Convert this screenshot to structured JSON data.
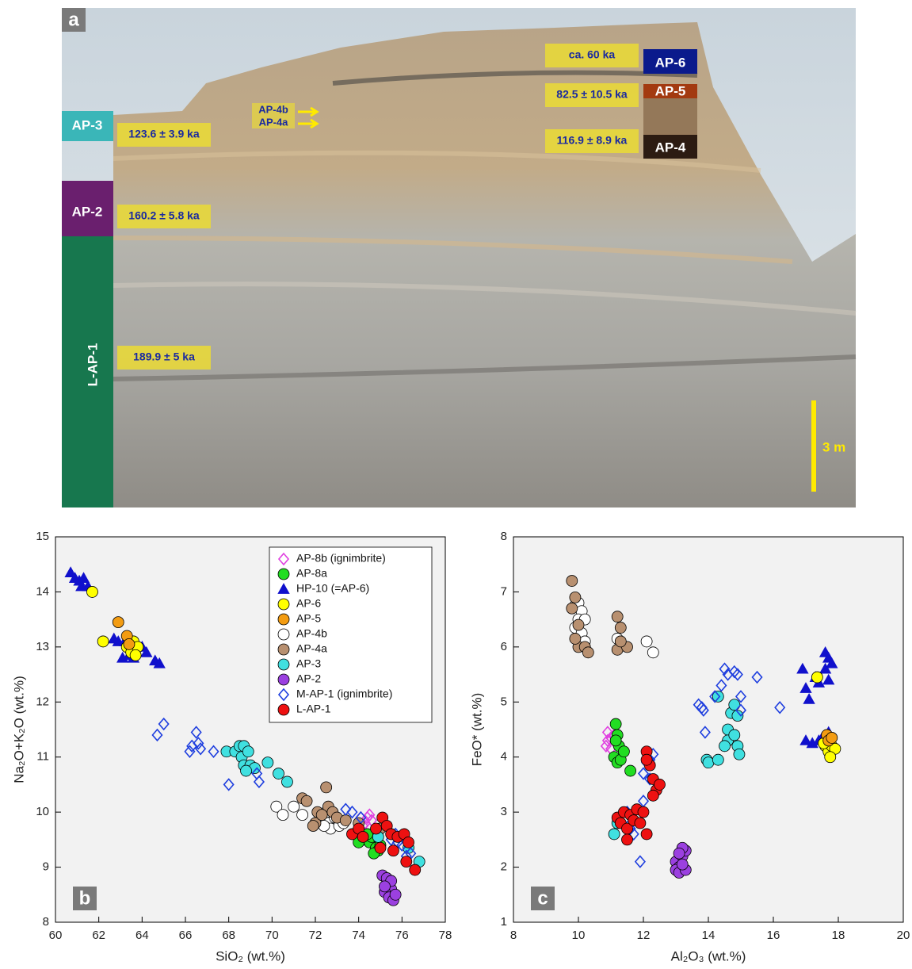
{
  "photo": {
    "label": "a",
    "unit_labels": [
      "AP-3",
      "AP-2",
      "L-AP-1",
      "AP-6",
      "AP-5",
      "AP-4"
    ],
    "ages": [
      "123.6 ± 3.9 ka",
      "160.2 ± 5.8 ka",
      "189.9 ± 5 ka",
      "ca. 60 ka",
      "82.5 ± 10.5 ka",
      "116.9 ± 8.9 ka"
    ],
    "arrows": [
      "AP-4b",
      "AP-4a"
    ],
    "scale_bar": "3 m"
  },
  "chart_data": [
    {
      "type": "scatter",
      "label": "b",
      "x_label": "SiO₂ (wt.%)",
      "y_label": "Na₂O+K₂O (wt.%)",
      "xlim": [
        60,
        78
      ],
      "xticks": [
        60,
        62,
        64,
        66,
        68,
        70,
        72,
        74,
        76,
        78
      ],
      "ylim": [
        8,
        15
      ],
      "yticks": [
        8,
        9,
        10,
        11,
        12,
        13,
        14,
        15
      ],
      "legend": "upper right",
      "series": [
        {
          "name": "AP-8b (ignimbrite)",
          "color": "#e040e0",
          "marker": "diamond-open",
          "x": [
            74.1,
            74.3,
            74.5,
            74.6,
            74.2,
            74.4
          ],
          "values": [
            9.9,
            9.8,
            9.95,
            9.85,
            9.75,
            9.9
          ]
        },
        {
          "name": "AP-8a",
          "color": "#22dd22",
          "marker": "circle",
          "x": [
            74.3,
            74.5,
            74.6,
            74.8,
            74.9,
            74.7,
            75.0,
            74.4,
            74.0
          ],
          "values": [
            9.5,
            9.45,
            9.55,
            9.35,
            9.3,
            9.25,
            9.4,
            9.6,
            9.45
          ]
        },
        {
          "name": "HP-10 (=AP-6)",
          "color": "#1010cc",
          "marker": "triangle",
          "x": [
            60.7,
            60.9,
            61.1,
            61.3,
            61.2,
            61.5,
            62.7,
            62.9,
            63.2,
            63.5,
            63.4,
            63.6,
            63.1,
            64.0,
            64.2,
            64.6,
            64.8,
            63.7
          ],
          "values": [
            14.35,
            14.25,
            14.2,
            14.25,
            14.1,
            14.1,
            13.15,
            13.1,
            13.1,
            13.0,
            12.85,
            12.8,
            12.8,
            13.0,
            12.9,
            12.75,
            12.7,
            13.05
          ]
        },
        {
          "name": "AP-6",
          "color": "#ffff00",
          "marker": "circle",
          "x": [
            61.7,
            62.2,
            63.3,
            63.5,
            63.6,
            63.8,
            63.7
          ],
          "values": [
            14.0,
            13.1,
            13.0,
            12.9,
            13.1,
            13.0,
            12.85
          ]
        },
        {
          "name": "AP-5",
          "color": "#f39c12",
          "marker": "circle",
          "x": [
            62.9,
            63.3,
            63.4
          ],
          "values": [
            13.45,
            13.2,
            13.05
          ]
        },
        {
          "name": "AP-4b",
          "color": "#ffffff",
          "marker": "circle",
          "x": [
            70.2,
            70.5,
            71.0,
            71.4,
            72.3,
            72.5,
            72.6,
            72.7,
            72.9,
            73.1,
            73.3,
            72.4
          ],
          "values": [
            10.1,
            9.95,
            10.1,
            9.95,
            9.9,
            10.0,
            9.8,
            9.7,
            9.9,
            9.75,
            9.8,
            9.75
          ]
        },
        {
          "name": "AP-4a",
          "color": "#b89070",
          "marker": "circle",
          "x": [
            71.4,
            71.6,
            72.1,
            72.5,
            72.6,
            72.0,
            71.9,
            72.8,
            73.0,
            73.4,
            74.0,
            75.0,
            72.3
          ],
          "values": [
            10.25,
            10.2,
            10.0,
            10.45,
            10.1,
            9.8,
            9.75,
            10.0,
            9.9,
            9.85,
            9.8,
            9.7,
            9.95
          ]
        },
        {
          "name": "AP-3",
          "color": "#40e0e0",
          "marker": "circle",
          "x": [
            67.9,
            68.3,
            68.5,
            68.7,
            68.6,
            68.9,
            68.7,
            69.0,
            69.2,
            69.8,
            70.3,
            70.7,
            68.8,
            76.3,
            76.8,
            74.9
          ],
          "values": [
            11.1,
            11.1,
            11.2,
            11.2,
            11.0,
            11.1,
            10.85,
            10.85,
            10.8,
            10.9,
            10.7,
            10.55,
            10.75,
            9.35,
            9.1,
            9.55
          ]
        },
        {
          "name": "AP-2",
          "color": "#9b40e0",
          "marker": "circle",
          "x": [
            75.1,
            75.3,
            75.5,
            75.2,
            75.4,
            75.6,
            75.7,
            75.3,
            75.5,
            75.2
          ],
          "values": [
            8.85,
            8.7,
            8.6,
            8.55,
            8.45,
            8.4,
            8.5,
            8.8,
            8.75,
            8.65
          ]
        },
        {
          "name": "M-AP-1 (ignimbrite)",
          "color": "#1f3fdf",
          "marker": "diamond-open",
          "x": [
            64.7,
            65.0,
            66.2,
            66.3,
            66.5,
            66.6,
            66.7,
            67.3,
            68.0,
            69.3,
            69.4,
            73.4,
            73.7,
            74.1,
            75.5,
            75.8,
            76.0,
            76.2,
            76.4,
            75.7
          ],
          "values": [
            11.4,
            11.6,
            11.1,
            11.2,
            11.45,
            11.25,
            11.15,
            11.1,
            10.5,
            10.7,
            10.55,
            10.05,
            10.0,
            9.9,
            9.5,
            9.45,
            9.4,
            9.2,
            9.25,
            9.6
          ]
        },
        {
          "name": "L-AP-1",
          "color": "#ee1111",
          "marker": "circle",
          "x": [
            73.7,
            74.0,
            74.2,
            74.8,
            75.1,
            75.3,
            75.5,
            75.8,
            76.1,
            76.3,
            76.2,
            76.6,
            75.0,
            75.6
          ],
          "values": [
            9.6,
            9.7,
            9.55,
            9.7,
            9.9,
            9.75,
            9.6,
            9.55,
            9.6,
            9.45,
            9.1,
            8.95,
            9.35,
            9.3
          ]
        }
      ]
    },
    {
      "type": "scatter",
      "label": "c",
      "x_label": "Al₂O₃ (wt.%)",
      "y_label": "FeO* (wt.%)",
      "xlim": [
        8,
        20
      ],
      "xticks": [
        8,
        10,
        12,
        14,
        16,
        18,
        20
      ],
      "ylim": [
        1,
        8
      ],
      "yticks": [
        1,
        2,
        3,
        4,
        5,
        6,
        7,
        8
      ],
      "series": [
        {
          "color": "#e040e0",
          "marker": "diamond-open",
          "x": [
            10.9,
            11.0,
            10.85,
            11.0,
            10.9,
            11.1
          ],
          "values": [
            4.45,
            4.35,
            4.2,
            4.15,
            4.3,
            4.4
          ]
        },
        {
          "color": "#22dd22",
          "marker": "circle",
          "x": [
            11.15,
            11.2,
            11.25,
            11.1,
            11.2,
            11.3,
            11.4,
            11.6,
            11.15
          ],
          "values": [
            4.6,
            4.4,
            4.2,
            4.0,
            3.9,
            3.95,
            4.1,
            3.75,
            4.3
          ]
        },
        {
          "color": "#1010cc",
          "marker": "triangle",
          "x": [
            16.9,
            17.0,
            17.1,
            17.3,
            17.6,
            17.7,
            17.6,
            17.8,
            17.7,
            17.4,
            17.0,
            17.2,
            17.4,
            17.7,
            17.5
          ],
          "values": [
            5.6,
            5.25,
            5.05,
            5.45,
            5.9,
            5.8,
            5.6,
            5.7,
            5.4,
            5.35,
            4.3,
            4.25,
            4.3,
            4.45,
            4.35
          ]
        },
        {
          "color": "#ffff00",
          "marker": "circle",
          "x": [
            17.35,
            17.6,
            17.7,
            17.8,
            17.9,
            17.75,
            17.55
          ],
          "values": [
            5.45,
            4.2,
            4.1,
            4.2,
            4.15,
            4.0,
            4.25
          ]
        },
        {
          "color": "#f39c12",
          "marker": "circle",
          "x": [
            17.65,
            17.7,
            17.8
          ],
          "values": [
            4.4,
            4.3,
            4.35
          ]
        },
        {
          "color": "#ffffff",
          "marker": "circle",
          "x": [
            9.9,
            10.0,
            10.1,
            10.0,
            10.2,
            9.9,
            10.1,
            10.2,
            11.2,
            12.1,
            12.3
          ],
          "values": [
            6.75,
            6.8,
            6.65,
            6.5,
            6.5,
            6.35,
            6.25,
            6.1,
            6.15,
            6.1,
            5.9
          ]
        },
        {
          "color": "#b89070",
          "marker": "circle",
          "x": [
            9.8,
            9.9,
            9.8,
            10.0,
            10.0,
            10.2,
            10.3,
            9.9,
            11.2,
            11.3,
            11.2,
            11.5,
            11.3
          ],
          "values": [
            7.2,
            6.9,
            6.7,
            6.4,
            6.0,
            6.0,
            5.9,
            6.15,
            6.55,
            6.35,
            5.95,
            6.0,
            6.1
          ]
        },
        {
          "color": "#40e0e0",
          "marker": "circle",
          "x": [
            11.1,
            11.2,
            13.95,
            14.0,
            14.3,
            14.3,
            14.6,
            14.6,
            14.5,
            14.7,
            14.8,
            14.9,
            14.8,
            14.9,
            14.95
          ],
          "values": [
            2.6,
            2.8,
            3.95,
            3.9,
            5.1,
            3.95,
            4.5,
            4.3,
            4.2,
            4.8,
            4.95,
            4.75,
            4.4,
            4.2,
            4.05
          ]
        },
        {
          "color": "#9b40e0",
          "marker": "circle",
          "x": [
            13.0,
            13.1,
            13.2,
            13.3,
            13.2,
            13.0,
            13.1,
            13.3,
            13.1,
            13.2
          ],
          "values": [
            2.1,
            2.0,
            2.2,
            2.3,
            2.35,
            1.95,
            1.9,
            1.95,
            2.25,
            2.05
          ]
        },
        {
          "color": "#1f3fdf",
          "marker": "diamond-open",
          "x": [
            11.4,
            11.5,
            11.6,
            11.8,
            11.7,
            11.9,
            11.9,
            12.0,
            12.0,
            12.2,
            12.3,
            12.1,
            12.2,
            13.7,
            13.8,
            13.9,
            14.2,
            14.4,
            14.5,
            14.6,
            14.8,
            14.9,
            15.0,
            15.0,
            15.5,
            16.2,
            13.85
          ],
          "values": [
            2.85,
            3.0,
            2.7,
            2.9,
            2.6,
            2.1,
            2.95,
            3.2,
            3.7,
            3.95,
            4.05,
            3.9,
            3.6,
            4.95,
            4.9,
            4.45,
            5.1,
            5.3,
            5.6,
            5.5,
            5.55,
            5.5,
            5.1,
            4.85,
            5.45,
            4.9,
            4.85
          ]
        },
        {
          "color": "#ee1111",
          "marker": "circle",
          "x": [
            11.2,
            11.3,
            11.4,
            11.5,
            11.6,
            11.7,
            11.8,
            11.9,
            12.0,
            11.5,
            12.1,
            12.1,
            12.2,
            12.3,
            12.4,
            12.5,
            12.3,
            12.1
          ],
          "values": [
            2.9,
            2.8,
            3.0,
            2.7,
            2.95,
            2.85,
            3.05,
            2.8,
            3.0,
            2.5,
            2.6,
            4.1,
            3.85,
            3.6,
            3.4,
            3.5,
            3.3,
            3.95
          ]
        }
      ]
    }
  ]
}
